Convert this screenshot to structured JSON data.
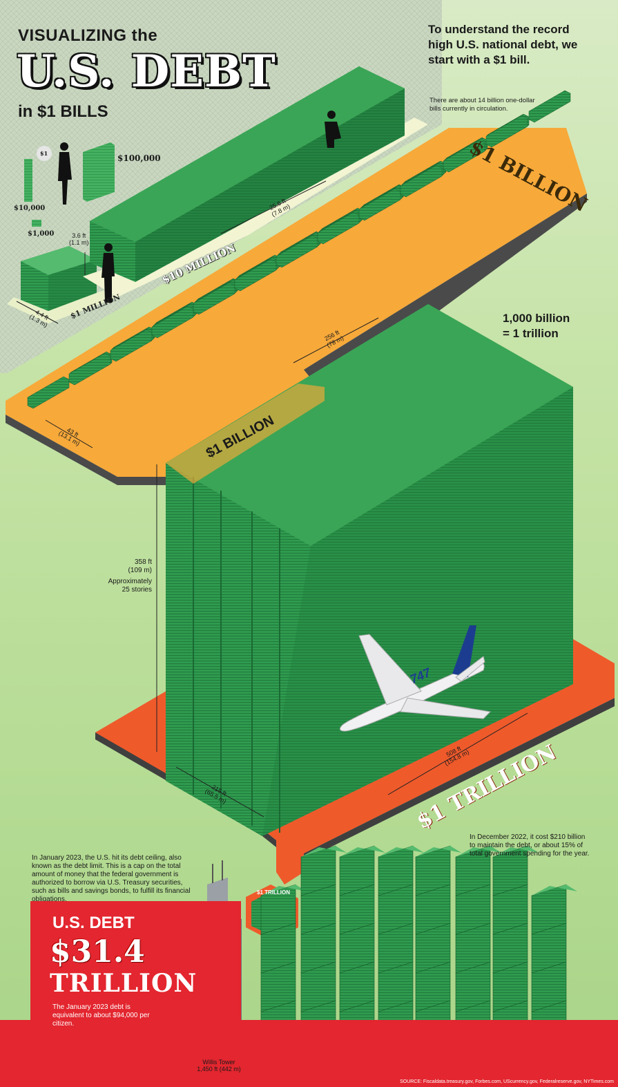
{
  "header": {
    "line1": "VISUALIZING the",
    "line2": "U.S. DEBT",
    "line3": "in $1 BILLS"
  },
  "intro": {
    "text": "To understand the record high U.S. national debt, we start with a $1 bill.",
    "note": "There are about 14 billion one-dollar bills currently in circulation."
  },
  "small_stacks": {
    "one": "$1",
    "ten_thousand": "$10,000",
    "thousand": "$1,000",
    "hundred_thousand": "$100,000"
  },
  "million": {
    "label": "$1 MILLION",
    "dim_ft": "4.4 ft",
    "dim_m": "(1.3 m)"
  },
  "ten_million": {
    "label": "$10 MILLION",
    "height_ft": "3.6 ft",
    "height_m": "(1.1 m)",
    "length_ft": "25.6 ft",
    "length_m": "(7.8 m)"
  },
  "billion": {
    "label_right": "$1 BILLION",
    "label_left": "$1 BILLION",
    "length_ft": "256 ft",
    "length_m": "(78 m)",
    "width_ft": "43 ft",
    "width_m": "(13.1 m)"
  },
  "trillion": {
    "equation_line1": "1,000 billion",
    "equation_line2": "= 1 trillion",
    "label": "$1 TRILLION",
    "small_label": "$1 TRILLION",
    "height_ft": "358 ft",
    "height_m": "(109 m)",
    "stories_line1": "Approximately",
    "stories_line2": "25 stories",
    "depth_ft": "215 ft",
    "depth_m": "(65.5 m)",
    "length_ft": "508 ft",
    "length_m": "(154.8 m)",
    "plane_tail": "747"
  },
  "notes": {
    "ceiling": "In January 2023, the U.S. hit its debt ceiling, also known as the debt limit. This is a cap on the total amount of money that the federal government is authorized to borrow via U.S. Treasury securities, such as bills and savings bonds, to fulfill its financial obligations.",
    "maintain": "In December 2022, it cost $210 billion to maintain the debt, or about 15% of total government spending for the year."
  },
  "debt": {
    "title": "U.S. DEBT",
    "amount": "$31.4",
    "unit": "TRILLION",
    "per_citizen": "The January 2023 debt is equivalent to about $94,000 per citizen."
  },
  "willis": {
    "name": "Willis Tower",
    "height": "1,450 ft (442 m)"
  },
  "source": "SOURCE: Fiscaldata.treasury.gov, Forbes.com, UScurrency.gov, Federalreserve.gov, NYTimes.com",
  "colors": {
    "money_dark": "#1f7a3c",
    "money_mid": "#2f9a4e",
    "money_light": "#48b563",
    "orange": "#f7a93a",
    "red_orange": "#ef5a2b",
    "red": "#e3262f",
    "base_gray": "#4a4a4a"
  }
}
